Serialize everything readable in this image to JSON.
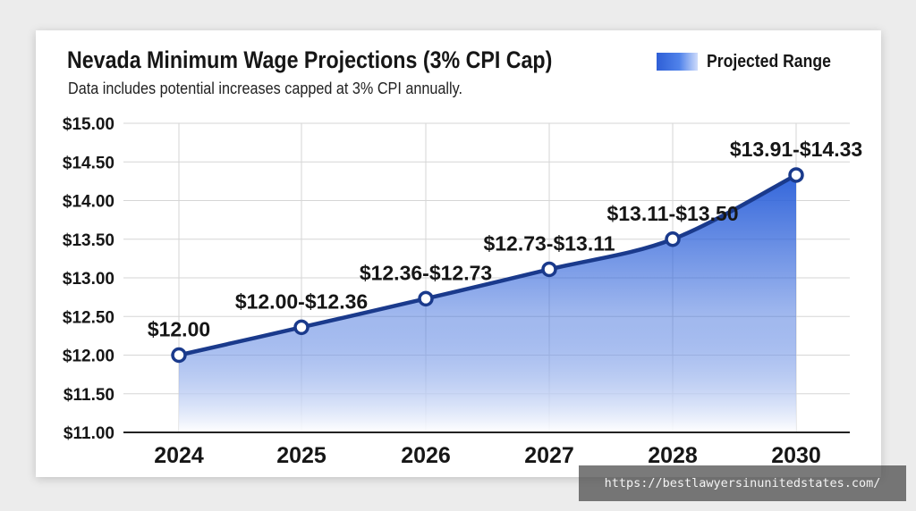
{
  "chart_data": {
    "type": "area",
    "title": "Nevada Minimum Wage Projections (3% CPI Cap)",
    "subtitle": "Data includes potential increases capped at 3% CPI annually.",
    "legend": {
      "label": "Projected Range",
      "placement": "top-right"
    },
    "categories": [
      "2024",
      "2025",
      "2026",
      "2027",
      "2028",
      "2030"
    ],
    "series": [
      {
        "name": "Projected Range",
        "values": [
          12.0,
          12.36,
          12.73,
          13.11,
          13.5,
          14.33
        ]
      }
    ],
    "point_labels": [
      "$12.00",
      "$12.00-$12.36",
      "$12.36-$12.73",
      "$12.73-$13.11",
      "$13.11-$13.50",
      "$13.91-$14.33"
    ],
    "y_ticks": [
      11.0,
      11.5,
      12.0,
      12.5,
      13.0,
      13.5,
      14.0,
      14.5,
      15.0
    ],
    "y_tick_labels": [
      "$11.00",
      "$11.50",
      "$12.00",
      "$12.50",
      "$13.00",
      "$13.50",
      "$14.00",
      "$14.50",
      "$15.00"
    ],
    "ylim": [
      11.0,
      15.0
    ],
    "grid": true,
    "colors": {
      "line": "#1a3a8c",
      "fill_top": "#2f63da",
      "fill_bottom": "#ffffff",
      "grid": "#d6d6d6"
    }
  },
  "watermark": "https://bestlawyersinunitedstates.com/"
}
